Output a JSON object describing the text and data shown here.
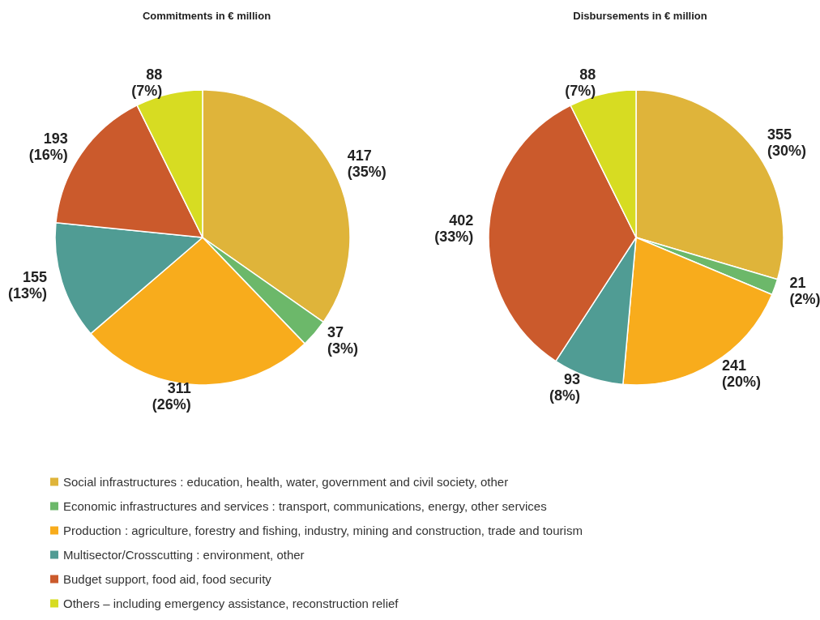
{
  "chart_data": {
    "type": "pie",
    "categories": [
      "Social infrastructures : education, health, water, government and civil society, other",
      "Economic infrastructures and services : transport, communications, energy, other services",
      "Production : agriculture, forestry and fishing, industry, mining and construction, trade and tourism",
      "Multisector/Crosscutting : environment, other",
      "Budget support, food aid, food security",
      "Others – including emergency assistance, reconstruction relief"
    ],
    "colors": [
      "#dfb43a",
      "#6cb86a",
      "#f8ac1c",
      "#509c94",
      "#cb5a2c",
      "#d7dc22"
    ],
    "series": [
      {
        "name": "Commitments in € million",
        "values": [
          417,
          37,
          311,
          155,
          193,
          88
        ],
        "value_labels": [
          "417 (35%)",
          "37 (3%)",
          "311 (26%)",
          "155 (13%)",
          "193 (16%)",
          "88 (7%)"
        ]
      },
      {
        "name": "Disbursements in € million",
        "values": [
          355,
          21,
          241,
          93,
          402,
          88
        ],
        "value_labels": [
          "355 (30%)",
          "21 (2%)",
          "241 (20%)",
          "93 (8%)",
          "402 (33%)",
          "88 (7%)"
        ]
      }
    ],
    "legend": "bottom"
  }
}
